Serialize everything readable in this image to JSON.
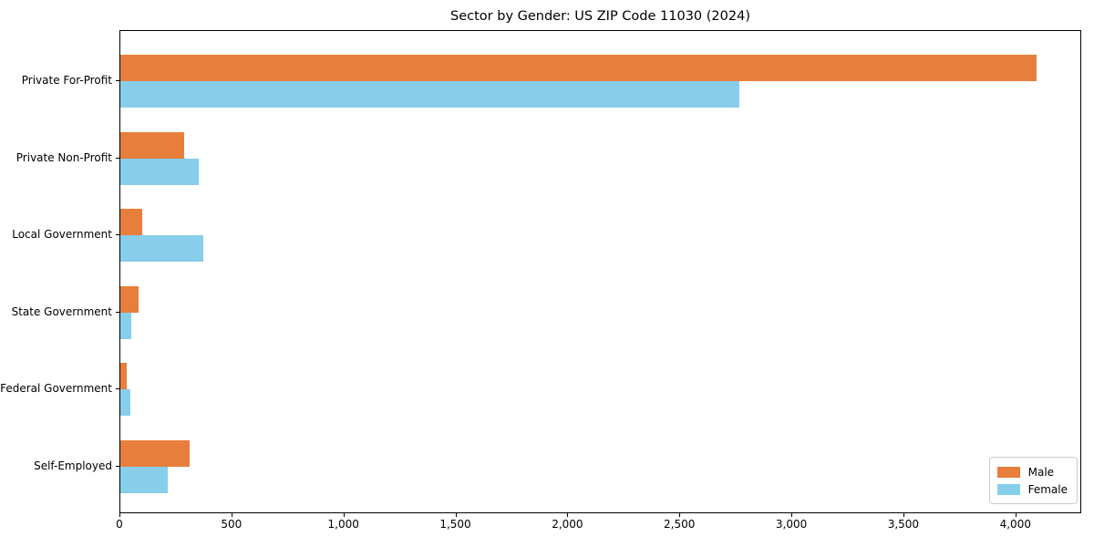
{
  "chart_data": {
    "type": "bar",
    "orientation": "horizontal",
    "title": "Sector by Gender: US ZIP Code 11030 (2024)",
    "categories": [
      "Private For-Profit",
      "Private Non-Profit",
      "Local Government",
      "State Government",
      "Federal Government",
      "Self-Employed"
    ],
    "series": [
      {
        "name": "Male",
        "color": "#e87e3c",
        "values": [
          4090,
          283,
          96,
          83,
          30,
          311
        ]
      },
      {
        "name": "Female",
        "color": "#87ceeb",
        "values": [
          2765,
          348,
          372,
          47,
          43,
          213
        ]
      }
    ],
    "xlabel": "",
    "ylabel": "",
    "xlim": [
      0,
      4294
    ],
    "xticks": [
      0,
      500,
      1000,
      1500,
      2000,
      2500,
      3000,
      3500,
      4000
    ],
    "xtick_labels": [
      "0",
      "500",
      "1,000",
      "1,500",
      "2,000",
      "2,500",
      "3,000",
      "3,500",
      "4,000"
    ],
    "grid": false,
    "legend": {
      "position": "lower right"
    }
  }
}
